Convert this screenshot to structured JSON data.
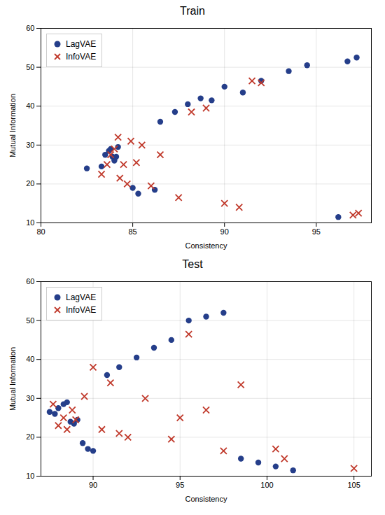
{
  "chart_data": [
    {
      "type": "scatter",
      "title": "Train",
      "xlabel": "Consistency",
      "ylabel": "Mutual Information",
      "xlim": [
        80,
        98
      ],
      "ylim": [
        10,
        60
      ],
      "xticks": [
        80,
        85,
        90,
        95
      ],
      "yticks": [
        10,
        20,
        30,
        40,
        50,
        60
      ],
      "grid": true,
      "legend": "upper left",
      "series": [
        {
          "name": "LagVAE",
          "color": "#253e8a",
          "marker": "circle",
          "x": [
            82.5,
            83.3,
            83.5,
            83.7,
            83.8,
            83.9,
            84.0,
            84.1,
            84.2,
            85.0,
            85.3,
            86.2,
            86.5,
            87.3,
            88.0,
            88.7,
            89.3,
            90.0,
            91.0,
            92.0,
            93.5,
            94.5,
            96.2,
            96.7,
            97.2
          ],
          "values": [
            24.0,
            24.5,
            27.5,
            28.5,
            29.0,
            27.0,
            26.0,
            27.0,
            29.5,
            19.0,
            17.5,
            18.5,
            36.0,
            38.5,
            40.5,
            42.0,
            41.5,
            45.0,
            43.5,
            46.5,
            49.0,
            50.5,
            11.5,
            51.5,
            52.5
          ]
        },
        {
          "name": "InfoVAE",
          "color": "#c0392b",
          "marker": "x",
          "x": [
            83.3,
            83.6,
            83.8,
            84.0,
            84.2,
            84.3,
            84.5,
            84.7,
            84.9,
            85.2,
            85.5,
            86.0,
            86.5,
            87.5,
            88.2,
            89.0,
            90.0,
            90.8,
            91.5,
            92.0,
            97.0,
            97.3
          ],
          "values": [
            22.5,
            25.0,
            27.5,
            29.0,
            32.0,
            21.5,
            25.0,
            20.0,
            31.0,
            25.5,
            30.0,
            19.5,
            27.5,
            16.5,
            38.5,
            39.5,
            15.0,
            14.0,
            46.5,
            46.0,
            12.0,
            12.5
          ]
        }
      ]
    },
    {
      "type": "scatter",
      "title": "Test",
      "xlabel": "Consistency",
      "ylabel": "Mutual Information",
      "xlim": [
        87,
        106
      ],
      "ylim": [
        10,
        60
      ],
      "xticks": [
        90,
        95,
        100,
        105
      ],
      "yticks": [
        10,
        20,
        30,
        40,
        50,
        60
      ],
      "grid": true,
      "legend": "upper left",
      "series": [
        {
          "name": "LagVAE",
          "color": "#253e8a",
          "marker": "circle",
          "x": [
            87.5,
            87.8,
            88.0,
            88.3,
            88.5,
            88.7,
            88.9,
            89.1,
            89.4,
            89.7,
            90.0,
            90.8,
            91.5,
            92.5,
            93.5,
            94.5,
            95.5,
            96.5,
            97.5,
            98.5,
            99.5,
            100.5,
            101.5
          ],
          "values": [
            26.5,
            26.0,
            27.5,
            28.5,
            29.0,
            24.0,
            23.5,
            24.5,
            18.5,
            17.0,
            16.5,
            36.0,
            38.0,
            40.5,
            43.0,
            45.0,
            50.0,
            51.0,
            52.0,
            14.5,
            13.5,
            12.5,
            11.5
          ]
        },
        {
          "name": "InfoVAE",
          "color": "#c0392b",
          "marker": "x",
          "x": [
            87.7,
            88.0,
            88.3,
            88.5,
            88.8,
            89.0,
            89.5,
            90.0,
            90.5,
            91.0,
            91.5,
            92.0,
            93.0,
            94.5,
            95.0,
            95.5,
            96.5,
            97.5,
            98.5,
            100.5,
            101.0,
            105.0
          ],
          "values": [
            28.5,
            23.0,
            25.0,
            22.0,
            27.0,
            24.5,
            30.5,
            38.0,
            22.0,
            34.0,
            21.0,
            20.0,
            30.0,
            19.5,
            25.0,
            46.5,
            27.0,
            16.5,
            33.5,
            17.0,
            14.5,
            12.0
          ]
        }
      ]
    }
  ]
}
